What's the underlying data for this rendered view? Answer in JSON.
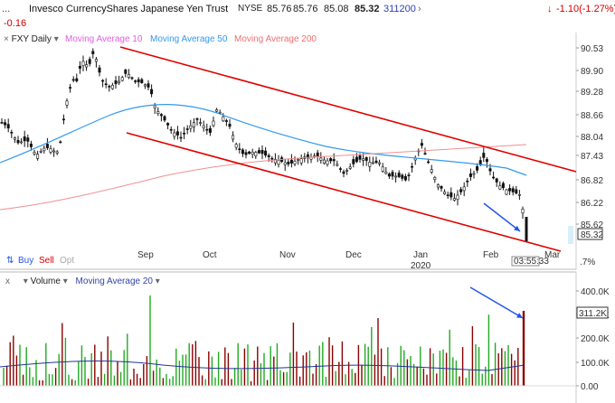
{
  "header": {
    "menu_dots": "...",
    "title": "Invesco CurrencyShares Japanese Yen Trust",
    "exchange": "NYSE",
    "open": "85.76",
    "high": "85.76",
    "low": "85.08",
    "last": "85.32",
    "volume": "311200",
    "change": "-1.10(-1.27%)",
    "sub_change": "-0.16"
  },
  "legend": {
    "symbol": "FXY Daily",
    "ma10": "Moving Average 10",
    "ma50": "Moving Average 50",
    "ma200": "Moving Average 200"
  },
  "volume_legend": {
    "close": "x",
    "label": "Volume",
    "ma": "Moving Average 20"
  },
  "buttons": {
    "buy": "Buy",
    "sell": "Sell",
    "opt": "Opt"
  },
  "price_axis": [
    "90.53",
    "89.90",
    "89.28",
    "88.66",
    "88.04",
    "87.43",
    "86.82",
    "86.22",
    "85.62",
    "85.32",
    ".7%"
  ],
  "volume_axis": [
    "400.0K",
    "300.0K",
    "200.0K",
    "100.0K",
    "0.00",
    "311.2K"
  ],
  "months": [
    "Sep",
    "Oct",
    "Nov",
    "Dec",
    "Jan",
    "Feb",
    "Mar"
  ],
  "year_label": "2020",
  "time_label": "03:55:33",
  "colors": {
    "channel": "#e00000",
    "ma10": "#e060e0",
    "ma50": "#3399ee",
    "ma200": "#f09090",
    "arrow": "#2255ee",
    "volume": "#8b0000",
    "up": "#22aa22"
  },
  "chart_data": {
    "type": "candlestick",
    "last_close": 85.32,
    "volume_last": 311200,
    "price_ylim": [
      85.32,
      90.53
    ],
    "volume_ylim": [
      0,
      400000
    ]
  }
}
